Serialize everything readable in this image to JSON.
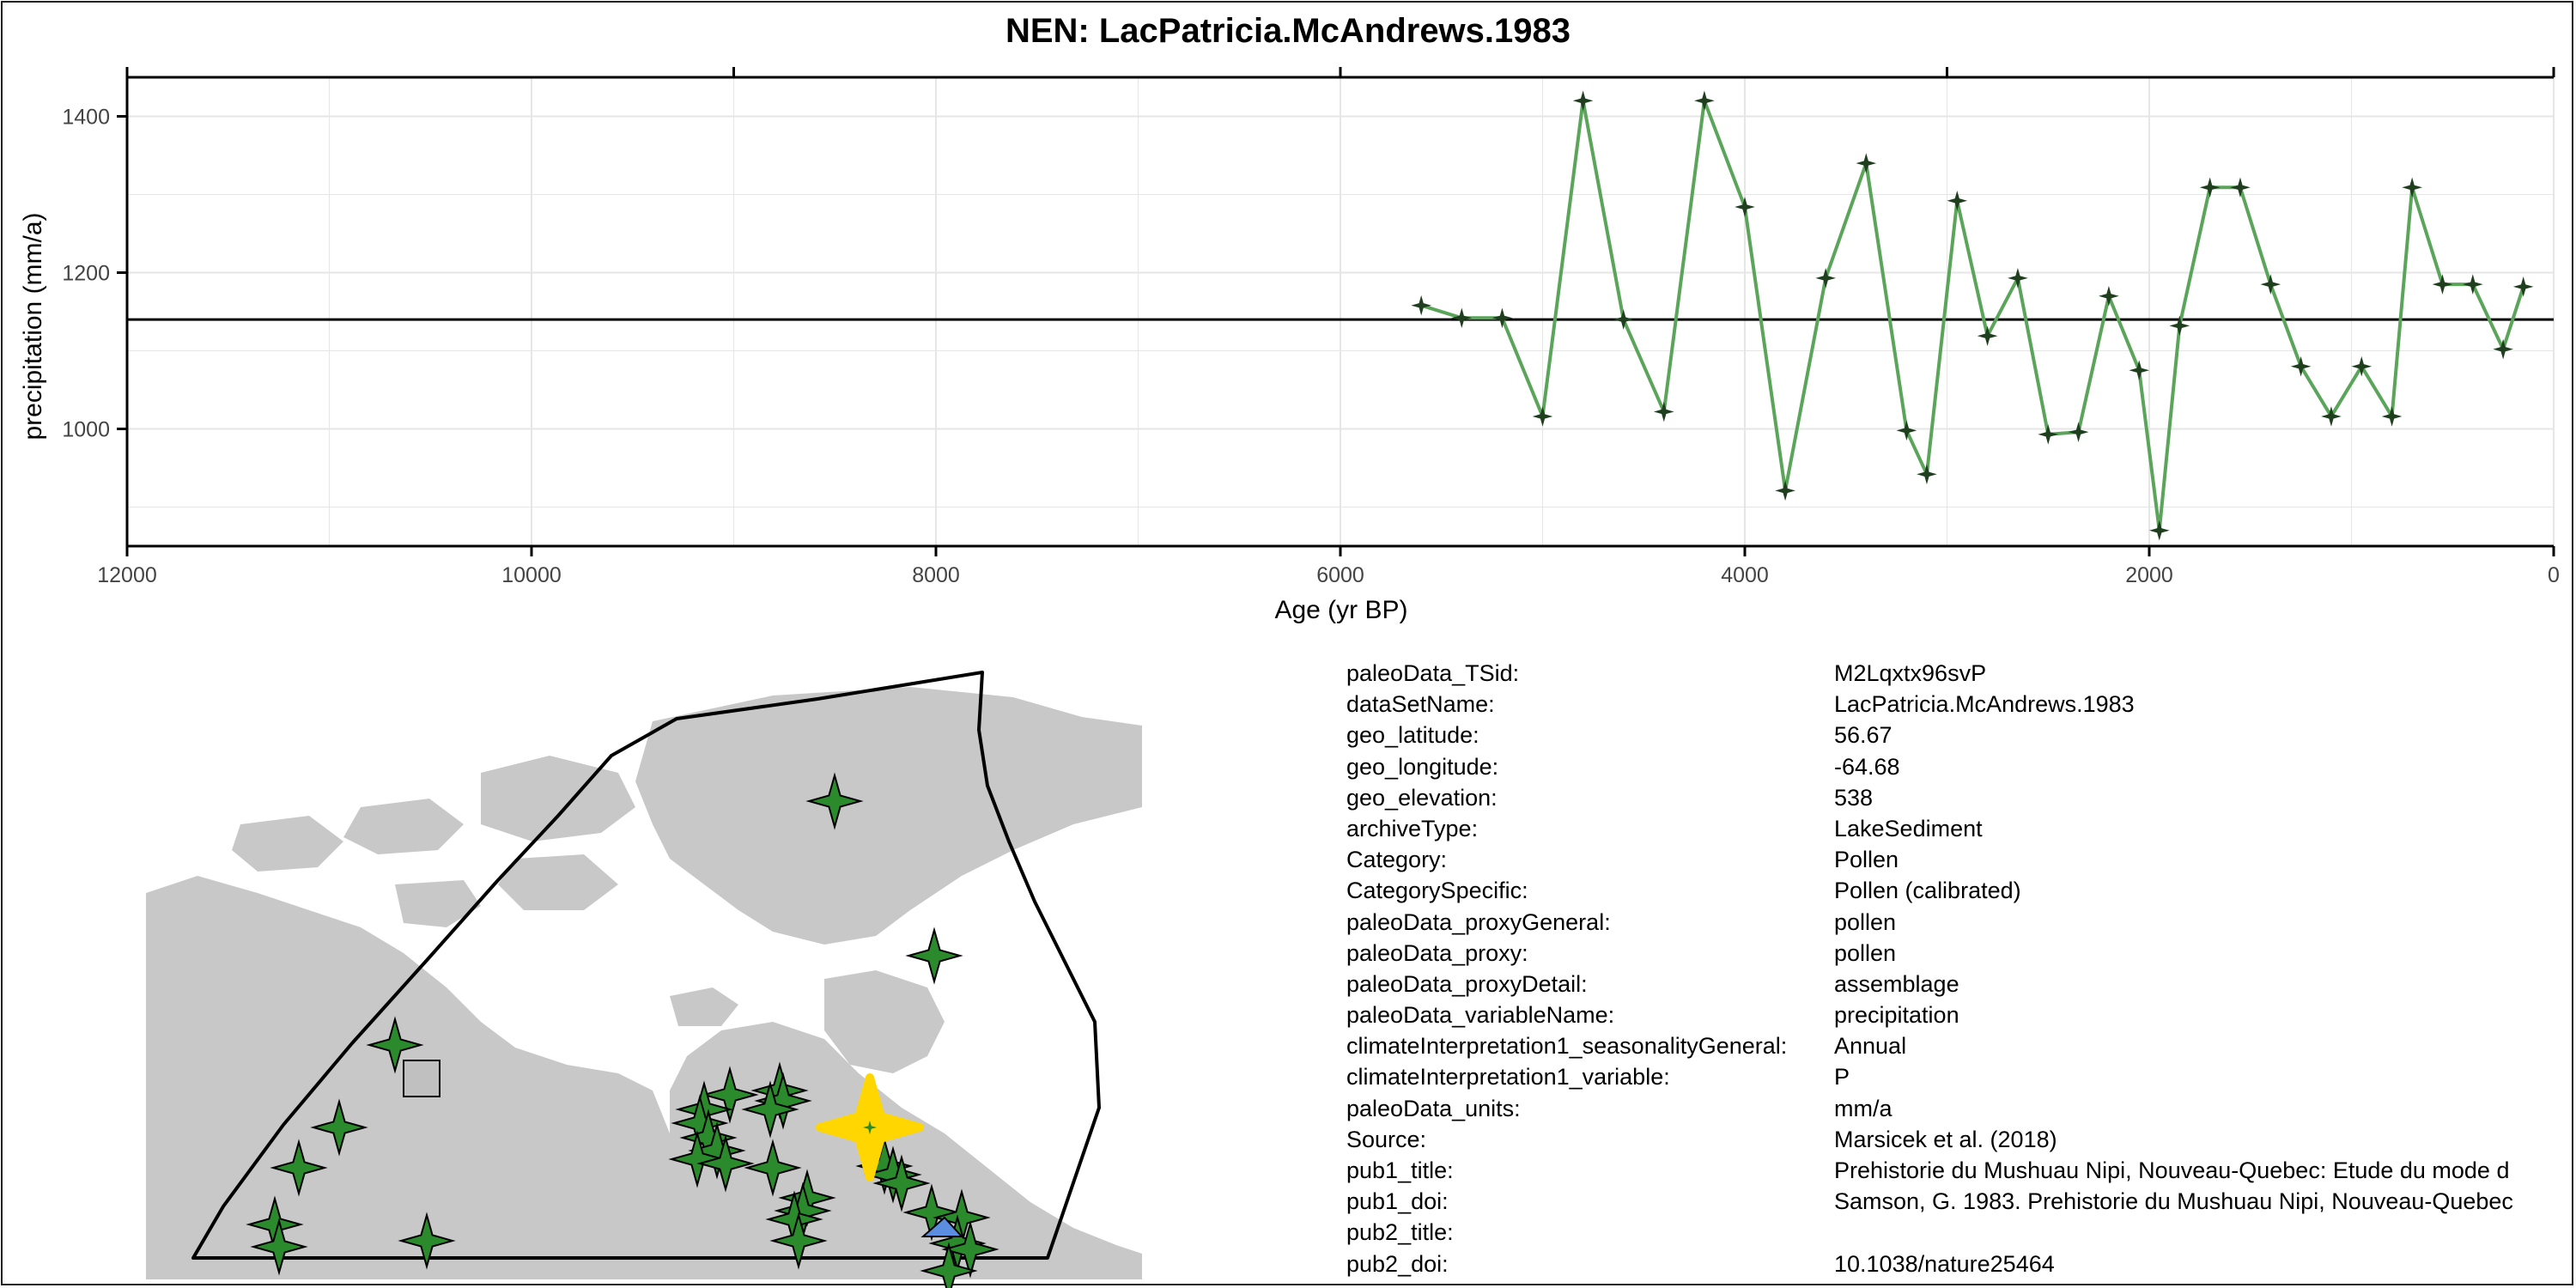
{
  "title": "NEN: LacPatricia.McAndrews.1983",
  "chart_data": {
    "type": "line",
    "xlabel": "Age (yr BP)",
    "ylabel": "precipitation (mm/a)",
    "xlim": [
      12000,
      0
    ],
    "x_reversed": true,
    "ylim": [
      850,
      1450
    ],
    "x_ticks": [
      12000,
      10000,
      8000,
      6000,
      4000,
      2000,
      0
    ],
    "y_ticks": [
      1000,
      1200,
      1400
    ],
    "grid": true,
    "reference_line_y": 1140,
    "line_color": "#5aa55a",
    "marker_color": "#1f3f1f",
    "x": [
      5600,
      5400,
      5200,
      5000,
      4800,
      4600,
      4400,
      4200,
      4000,
      3800,
      3600,
      3400,
      3200,
      3100,
      2950,
      2800,
      2650,
      2500,
      2350,
      2200,
      2050,
      1950,
      1850,
      1700,
      1550,
      1400,
      1250,
      1100,
      950,
      800,
      700,
      550,
      400,
      250,
      150
    ],
    "y": [
      1158,
      1142,
      1142,
      1016,
      1420,
      1140,
      1022,
      1420,
      1284,
      921,
      1193,
      1340,
      998,
      942,
      1292,
      1119,
      1193,
      993,
      996,
      1170,
      1075,
      870,
      1132,
      1309,
      1309,
      1185,
      1080,
      1016,
      1080,
      1016,
      1309,
      1185,
      1185,
      1102,
      1182
    ]
  },
  "map": {
    "land_color": "#c8c8c8",
    "marker_color": "#2b8a2b",
    "highlight_color": "#ffd600",
    "square_marker_color": "#c0c0c0",
    "blue_marker_color": "#5b8de0"
  },
  "metadata": [
    {
      "key": "paleoData_TSid:",
      "value": "M2Lqxtx96svP"
    },
    {
      "key": "dataSetName:",
      "value": "LacPatricia.McAndrews.1983"
    },
    {
      "key": "geo_latitude:",
      "value": "56.67"
    },
    {
      "key": "geo_longitude:",
      "value": "-64.68"
    },
    {
      "key": "geo_elevation:",
      "value": "538"
    },
    {
      "key": "archiveType:",
      "value": "LakeSediment"
    },
    {
      "key": "Category:",
      "value": "Pollen"
    },
    {
      "key": "CategorySpecific:",
      "value": "Pollen (calibrated)"
    },
    {
      "key": "paleoData_proxyGeneral:",
      "value": "pollen"
    },
    {
      "key": "paleoData_proxy:",
      "value": "pollen"
    },
    {
      "key": "paleoData_proxyDetail:",
      "value": "assemblage"
    },
    {
      "key": "paleoData_variableName:",
      "value": "precipitation"
    },
    {
      "key": "climateInterpretation1_seasonalityGeneral:",
      "value": "Annual"
    },
    {
      "key": "climateInterpretation1_variable:",
      "value": "P"
    },
    {
      "key": "paleoData_units:",
      "value": "mm/a"
    },
    {
      "key": "Source:",
      "value": "Marsicek et al. (2018)"
    },
    {
      "key": "pub1_title:",
      "value": "Prehistorie du Mushuau Nipi, Nouveau-Quebec: Etude du mode d"
    },
    {
      "key": "pub1_doi:",
      "value": "Samson, G. 1983. Prehistorie du Mushuau Nipi, Nouveau-Quebec"
    },
    {
      "key": "pub2_title:",
      "value": ""
    },
    {
      "key": "pub2_doi:",
      "value": "10.1038/nature25464"
    }
  ]
}
